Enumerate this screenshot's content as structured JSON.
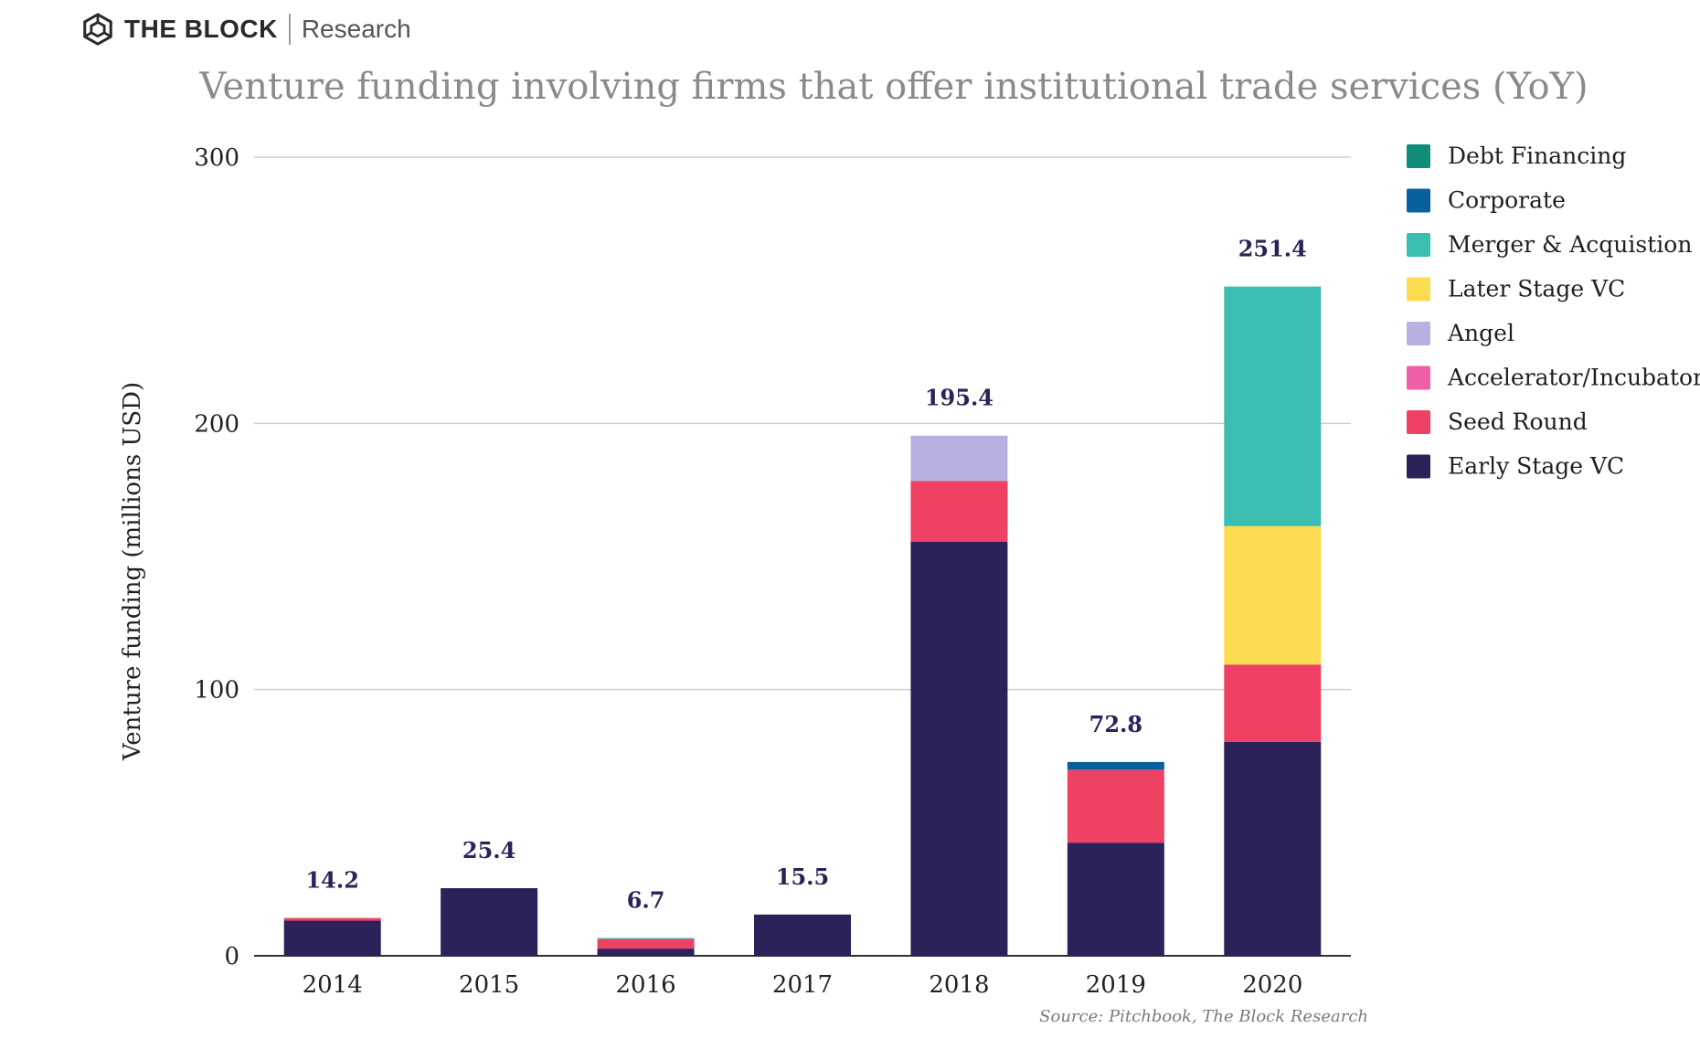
{
  "brand": {
    "name": "THE BLOCK",
    "sub": "Research"
  },
  "chart_data": {
    "type": "bar",
    "stacked": true,
    "title": "Venture funding involving firms that offer institutional trade services (YoY)",
    "ylabel": "Venture funding (millions USD)",
    "xlabel": "",
    "ylim": [
      0,
      300
    ],
    "yticks": [
      0,
      100,
      200,
      300
    ],
    "grid": true,
    "legend_position": "right",
    "categories": [
      "2014",
      "2015",
      "2016",
      "2017",
      "2018",
      "2019",
      "2020"
    ],
    "totals": [
      "14.2",
      "25.4",
      "6.7",
      "15.5",
      "195.4",
      "72.8",
      "251.4"
    ],
    "series": [
      {
        "name": "Early Stage VC",
        "color": "#2c2159",
        "values": [
          13.2,
          25.4,
          2.7,
          15.5,
          155.6,
          42.5,
          80.4
        ]
      },
      {
        "name": "Seed Round",
        "color": "#ef4164",
        "values": [
          1.0,
          0,
          3.6,
          0,
          22.8,
          27.4,
          29.0
        ]
      },
      {
        "name": "Accelerator/Incubator",
        "color": "#ee5fa7",
        "values": [
          0,
          0,
          0,
          0,
          0,
          0,
          0
        ]
      },
      {
        "name": "Angel",
        "color": "#b8b0e0",
        "values": [
          0,
          0,
          0,
          0,
          17.0,
          0,
          0
        ]
      },
      {
        "name": "Later Stage VC",
        "color": "#fbdb4f",
        "values": [
          0,
          0,
          0,
          0,
          0,
          0,
          52.0
        ]
      },
      {
        "name": "Merger & Acquistion",
        "color": "#3bbdb1",
        "values": [
          0,
          0,
          0.4,
          0,
          0,
          0,
          90.0
        ]
      },
      {
        "name": "Corporate",
        "color": "#08609c",
        "values": [
          0,
          0,
          0,
          0,
          0,
          2.9,
          0
        ]
      },
      {
        "name": "Debt Financing",
        "color": "#108c79",
        "values": [
          0,
          0,
          0,
          0,
          0,
          0,
          0
        ]
      }
    ],
    "legend_order": [
      "Debt Financing",
      "Corporate",
      "Merger & Acquistion",
      "Later Stage VC",
      "Angel",
      "Accelerator/Incubator",
      "Seed Round",
      "Early Stage VC"
    ],
    "source": "Source: Pitchbook, The Block Research"
  }
}
